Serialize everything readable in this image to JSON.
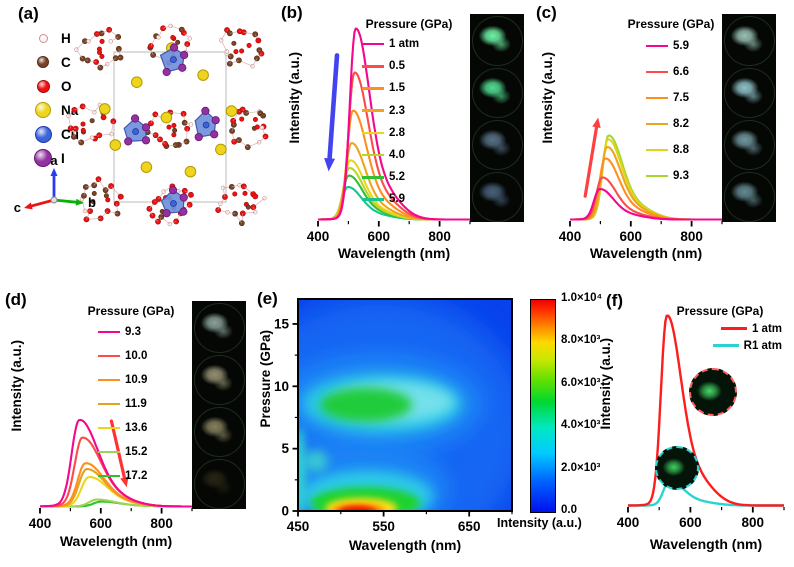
{
  "panels": {
    "a": {
      "label": "(a)",
      "atom_legend": [
        {
          "symbol": "H",
          "color": "#fdf4f4",
          "ring": "#cf9090",
          "r": 3.5
        },
        {
          "symbol": "C",
          "color": "#7a4328",
          "ring": "#4f2a12",
          "r": 5
        },
        {
          "symbol": "O",
          "color": "#ee1111",
          "ring": "#a00a0a",
          "r": 5.5
        },
        {
          "symbol": "Na",
          "color": "#eed41c",
          "ring": "#b19a07",
          "r": 7
        },
        {
          "symbol": "Cu",
          "color": "#3c63d8",
          "ring": "#1c3aa8",
          "r": 7.5
        },
        {
          "symbol": "I",
          "color": "#9232a0",
          "ring": "#691677",
          "r": 8
        }
      ],
      "axis_triad": [
        {
          "label": "a",
          "color": "#2a3cee"
        },
        {
          "label": "b",
          "color": "#0ab00a"
        },
        {
          "label": "c",
          "color": "#e81515"
        }
      ],
      "structure_colors": {
        "bond": "#c9a0a0",
        "octahedron": "#7191dc",
        "octahedron_edge": "#2f4cae",
        "cell": "#bbbbbb"
      }
    },
    "b": {
      "label": "(b)",
      "photos": [
        {
          "glow": "#6ef2a6",
          "brightness": 1.0
        },
        {
          "glow": "#57e89a",
          "brightness": 0.95
        },
        {
          "glow": "#8fb8dd",
          "brightness": 0.6
        },
        {
          "glow": "#7fa9d9",
          "brightness": 0.55
        }
      ]
    },
    "c": {
      "label": "(c)",
      "photos": [
        {
          "glow": "#bfeee0",
          "brightness": 0.8
        },
        {
          "glow": "#a8e2ea",
          "brightness": 0.85
        },
        {
          "glow": "#9fd3e0",
          "brightness": 0.7
        },
        {
          "glow": "#98cfdd",
          "brightness": 0.65
        }
      ]
    },
    "d": {
      "label": "(d)",
      "photos": [
        {
          "glow": "#c4e2da",
          "brightness": 0.7
        },
        {
          "glow": "#e0d8ae",
          "brightness": 0.65
        },
        {
          "glow": "#ddd09a",
          "brightness": 0.6
        },
        {
          "glow": "#6b5b33",
          "brightness": 0.35
        }
      ]
    },
    "e": {
      "label": "(e)"
    },
    "f": {
      "label": "(f)",
      "insets": [
        {
          "name": "ambient",
          "border": "#ff5c5c",
          "glow": "#46d968"
        },
        {
          "name": "released",
          "border": "#2ad4d4",
          "glow": "#3ecf5e"
        }
      ]
    }
  },
  "chart_data": [
    {
      "panel": "b",
      "type": "line",
      "legend_title": "Pressure (GPa)",
      "xlabel": "Wavelength (nm)",
      "ylabel": "Intensity (a.u.)",
      "xlim": [
        400,
        900
      ],
      "xticks": [
        400,
        600,
        800
      ],
      "arrow": {
        "color": "#4343ef",
        "from": [
          0.125,
          0.2
        ],
        "to": [
          0.07,
          0.76
        ],
        "meaning": "intensity decreases with pressure"
      },
      "series": [
        {
          "name": "1 atm",
          "color": "#f4068e",
          "peak_nm": 523,
          "rel_intensity": 1.0
        },
        {
          "name": "0.5",
          "color": "#fb4b4b",
          "peak_nm": 519,
          "rel_intensity": 0.77
        },
        {
          "name": "1.5",
          "color": "#fd8f20",
          "peak_nm": 514,
          "rel_intensity": 0.57
        },
        {
          "name": "2.3",
          "color": "#eca51f",
          "peak_nm": 509,
          "rel_intensity": 0.4
        },
        {
          "name": "2.8",
          "color": "#ecd51b",
          "peak_nm": 505,
          "rel_intensity": 0.31
        },
        {
          "name": "4.0",
          "color": "#b7d52a",
          "peak_nm": 502,
          "rel_intensity": 0.27
        },
        {
          "name": "5.2",
          "color": "#30c030",
          "peak_nm": 500,
          "rel_intensity": 0.23
        },
        {
          "name": "5.9",
          "color": "#14c78f",
          "peak_nm": 497,
          "rel_intensity": 0.17
        }
      ]
    },
    {
      "panel": "c",
      "type": "line",
      "legend_title": "Pressure (GPa)",
      "xlabel": "Wavelength (nm)",
      "ylabel": "Intensity (a.u.)",
      "xlim": [
        400,
        900
      ],
      "xticks": [
        400,
        600,
        800
      ],
      "arrow": {
        "color": "#ff4040",
        "from": [
          0.1,
          0.88
        ],
        "to": [
          0.185,
          0.5
        ],
        "meaning": "intensity increases with pressure"
      },
      "series": [
        {
          "name": "5.9",
          "color": "#f4068e",
          "peak_nm": 497,
          "rel_intensity": 0.16
        },
        {
          "name": "6.6",
          "color": "#fb4b4b",
          "peak_nm": 505,
          "rel_intensity": 0.22
        },
        {
          "name": "7.5",
          "color": "#fd8f20",
          "peak_nm": 515,
          "rel_intensity": 0.32
        },
        {
          "name": "8.2",
          "color": "#eca51f",
          "peak_nm": 521,
          "rel_intensity": 0.38
        },
        {
          "name": "8.8",
          "color": "#dfd51b",
          "peak_nm": 524,
          "rel_intensity": 0.42
        },
        {
          "name": "9.3",
          "color": "#a6d52e",
          "peak_nm": 526,
          "rel_intensity": 0.44
        }
      ]
    },
    {
      "panel": "d",
      "type": "line",
      "legend_title": "Pressure (GPa)",
      "xlabel": "Wavelength (nm)",
      "ylabel": "Intensity (a.u.)",
      "xlim": [
        400,
        900
      ],
      "xticks": [
        400,
        600,
        800
      ],
      "width_scale": 1.3,
      "arrow": {
        "color": "#ff3333",
        "from": [
          0.47,
          0.58
        ],
        "to": [
          0.57,
          0.9
        ],
        "meaning": "intensity decreases with pressure"
      },
      "series": [
        {
          "name": "9.3",
          "color": "#f4068e",
          "peak_nm": 528,
          "rel_intensity": 0.44
        },
        {
          "name": "10.0",
          "color": "#fb4b4b",
          "peak_nm": 538,
          "rel_intensity": 0.35
        },
        {
          "name": "10.9",
          "color": "#fd8f20",
          "peak_nm": 548,
          "rel_intensity": 0.22
        },
        {
          "name": "11.9",
          "color": "#e1a21c",
          "peak_nm": 552,
          "rel_intensity": 0.19
        },
        {
          "name": "13.6",
          "color": "#ecd51b",
          "peak_nm": 560,
          "rel_intensity": 0.15
        },
        {
          "name": "15.2",
          "color": "#9fd355",
          "peak_nm": 585,
          "rel_intensity": 0.035
        },
        {
          "name": "17.2",
          "color": "#2ec22e",
          "peak_nm": 600,
          "rel_intensity": 0.025
        }
      ]
    },
    {
      "panel": "e",
      "type": "heatmap",
      "xlabel": "Wavelength (nm)",
      "ylabel": "Pressure (GPa)",
      "xlim": [
        450,
        700
      ],
      "xticks": [
        450,
        550,
        650
      ],
      "ylim": [
        0,
        17
      ],
      "yticks": [
        0,
        5,
        10,
        15
      ],
      "colorbar": {
        "title": "Intensity (a.u.)",
        "ticks": [
          "0.0",
          "2.0×10³",
          "4.0×10³",
          "6.0×10³",
          "8.0×10³",
          "1.0×10⁴"
        ],
        "min": 0,
        "max": 10000
      },
      "base_intensity_au": 1000,
      "hotspots": [
        {
          "wavelength_nm": 524,
          "pressure_gpa": 0.3,
          "intensity_au": 10000
        },
        {
          "wavelength_nm": 527,
          "pressure_gpa": 8.6,
          "intensity_au": 6000
        }
      ]
    },
    {
      "panel": "f",
      "type": "line",
      "legend_title": "Pressure (GPa)",
      "xlabel": "Wavelength (nm)",
      "ylabel": "Intensity (a.u.)",
      "xlim": [
        400,
        900
      ],
      "xticks": [
        400,
        600,
        800
      ],
      "series": [
        {
          "name": "1 atm",
          "color": "#fe1d1d",
          "peak_nm": 524,
          "rel_intensity": 1.0
        },
        {
          "name": "R1 atm",
          "color": "#2bd3d0",
          "peak_nm": 532,
          "rel_intensity": 0.13
        }
      ]
    }
  ]
}
